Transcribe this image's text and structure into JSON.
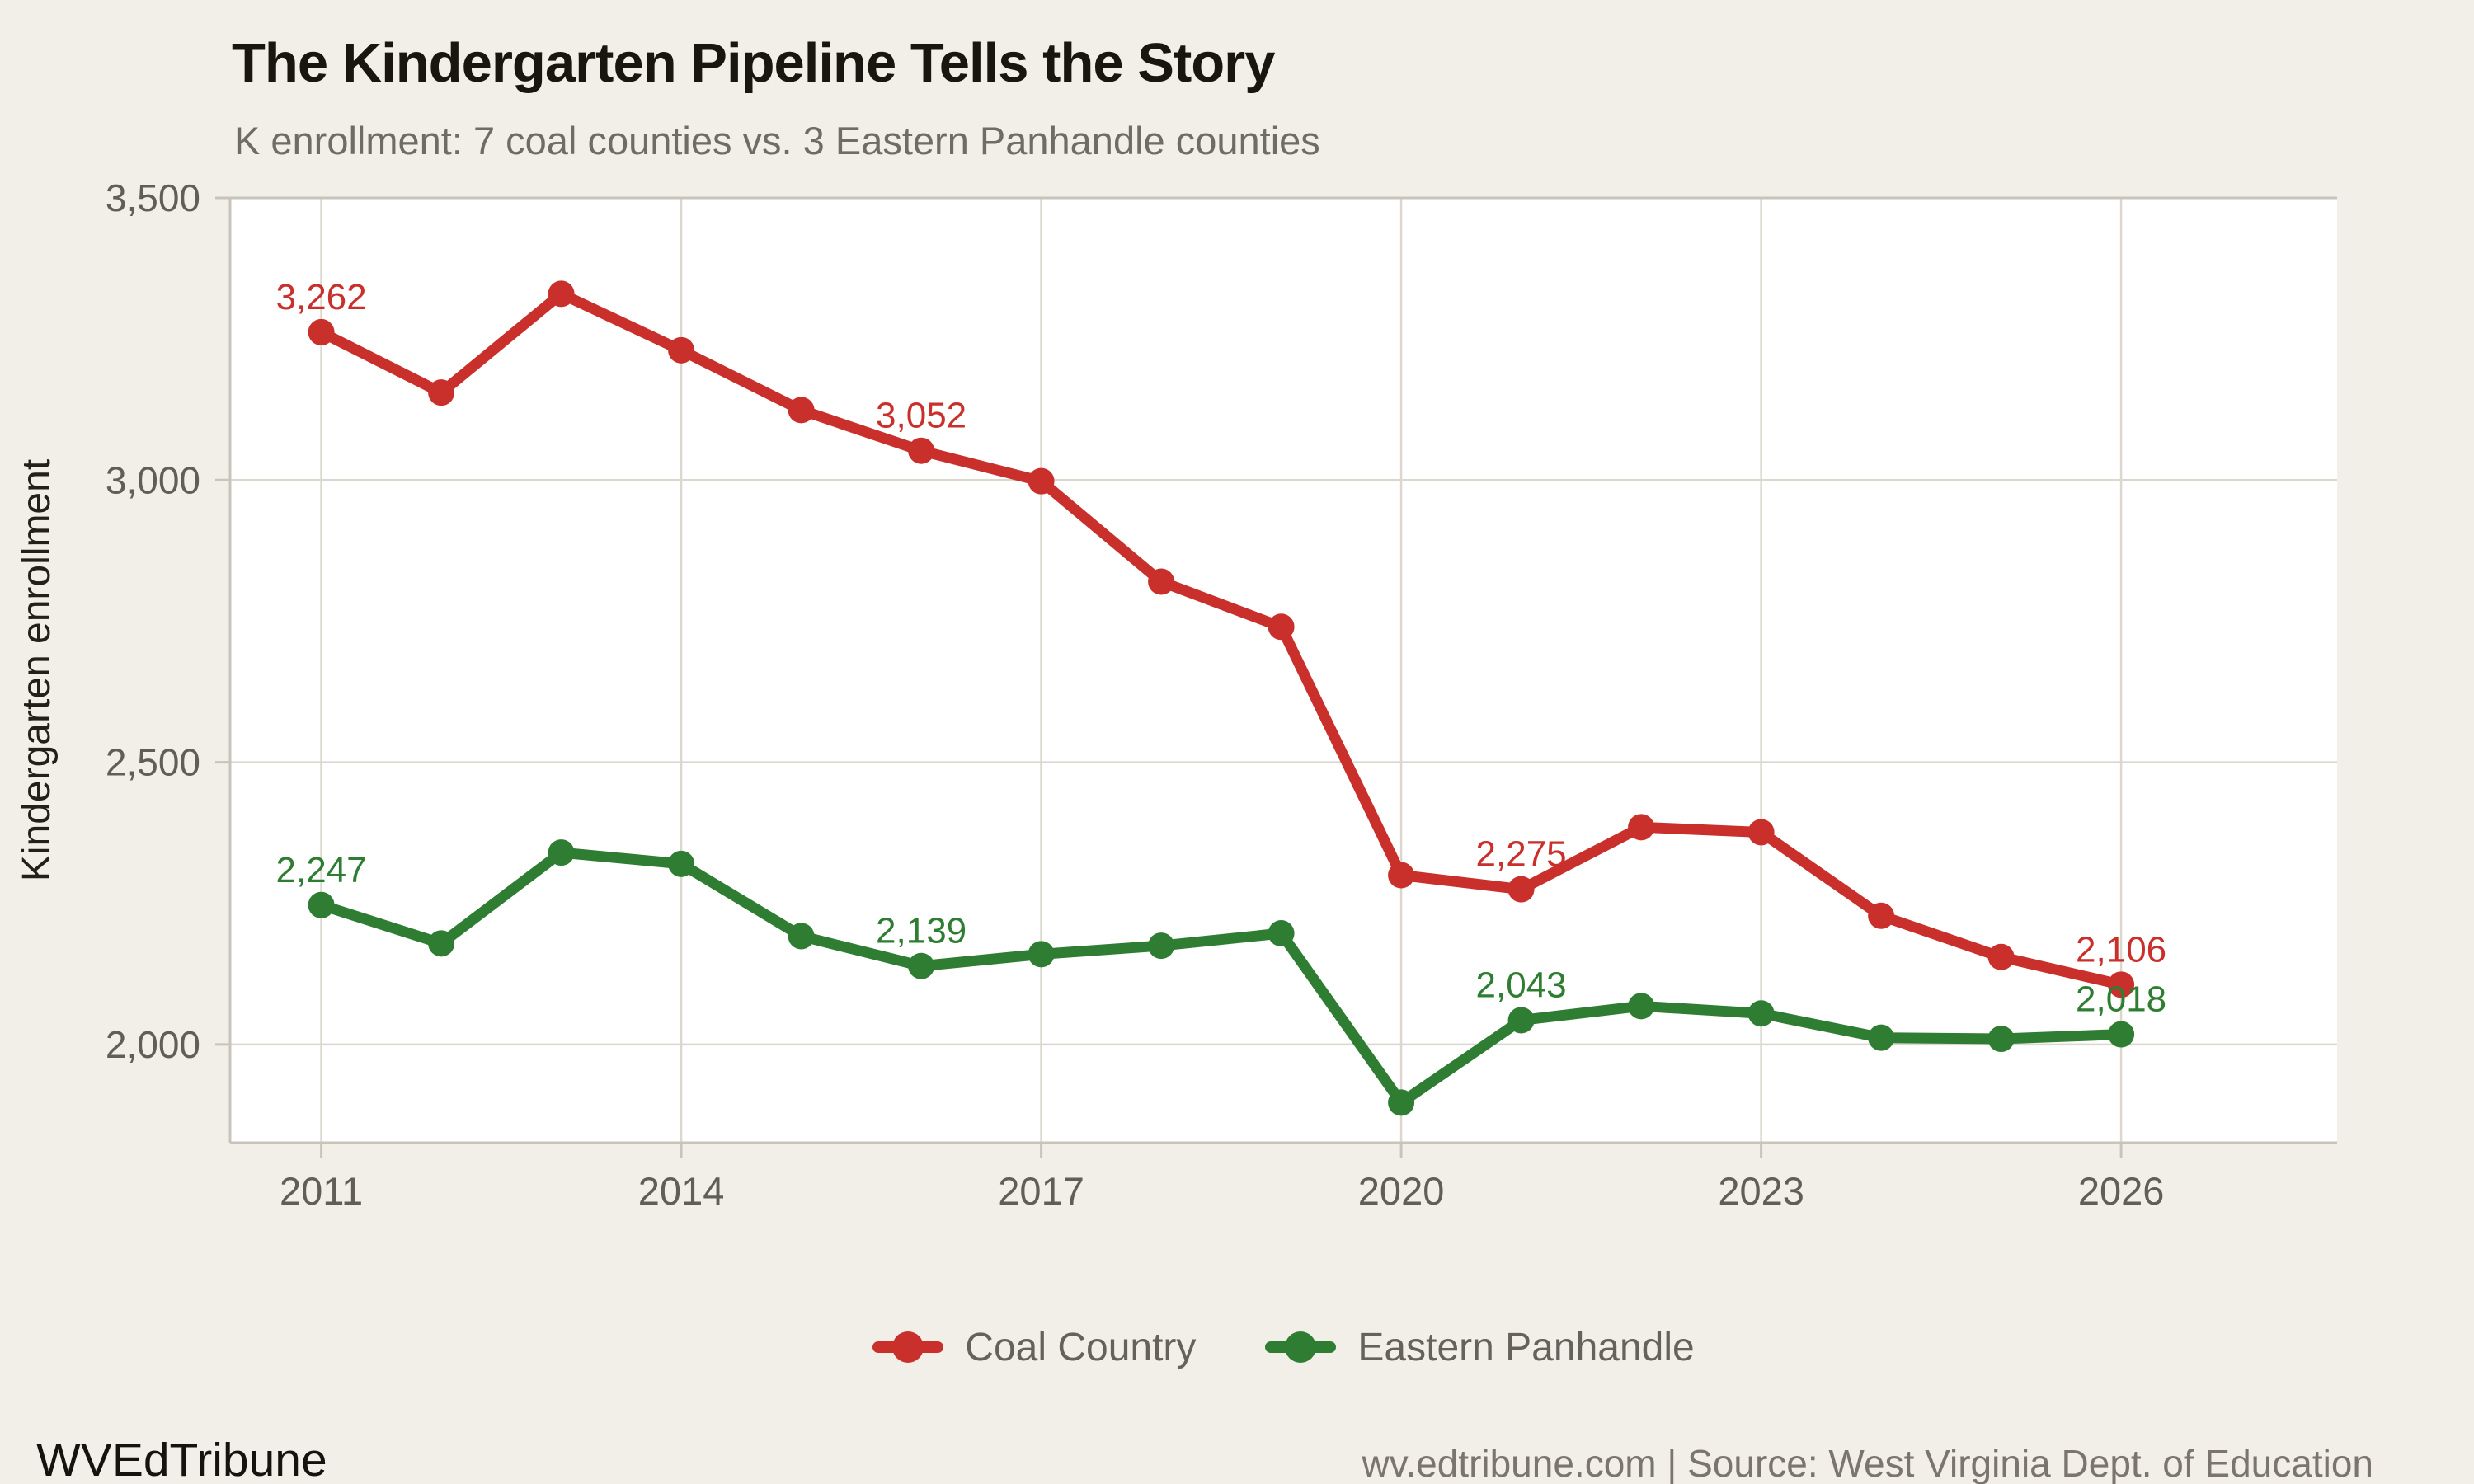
{
  "header": {
    "title": "The Kindergarten Pipeline Tells the Story",
    "subtitle": "K enrollment: 7 coal counties vs. 3 Eastern Panhandle counties"
  },
  "chart_data": {
    "type": "line",
    "title": "The Kindergarten Pipeline Tells the Story",
    "subtitle": "K enrollment: 7 coal counties vs. 3 Eastern Panhandle counties",
    "xlabel": "",
    "ylabel": "Kindergarten enrollment",
    "x": [
      2011,
      2012,
      2013,
      2014,
      2015,
      2016,
      2017,
      2018,
      2019,
      2020,
      2021,
      2022,
      2023,
      2024,
      2025,
      2026
    ],
    "x_ticks": [
      2011,
      2014,
      2017,
      2020,
      2023,
      2026
    ],
    "x_tick_labels": [
      "2011",
      "2014",
      "2017",
      "2020",
      "2023",
      "2026"
    ],
    "y_ticks": [
      2000,
      2500,
      3000,
      3500
    ],
    "y_tick_labels": [
      "2,000",
      "2,500",
      "3,000",
      "3,500"
    ],
    "x_range": [
      2010.24,
      2027.8
    ],
    "ylim": [
      1826,
      3500
    ],
    "grid": true,
    "legend_position": "bottom-center",
    "plot_bg": "#ffffff",
    "page_bg": "#f2efe8",
    "gridline_color": "#dbd7ce",
    "axis_border_color": "#c8c4bb",
    "tick_text_color": "#615e56",
    "axis_label_color": "#222019",
    "series": [
      {
        "name": "Coal Country",
        "color": "#c9302c",
        "values": [
          3262,
          3155,
          3330,
          3230,
          3124,
          3052,
          2998,
          2820,
          2740,
          2300,
          2275,
          2385,
          2376,
          2228,
          2155,
          2106
        ],
        "point_labels": [
          {
            "year": 2011,
            "text": "3,262"
          },
          {
            "year": 2016,
            "text": "3,052"
          },
          {
            "year": 2021,
            "text": "2,275"
          },
          {
            "year": 2026,
            "text": "2,106"
          }
        ]
      },
      {
        "name": "Eastern Panhandle",
        "color": "#2e7d32",
        "values": [
          2247,
          2179,
          2340,
          2320,
          2192,
          2139,
          2160,
          2175,
          2197,
          1897,
          2043,
          2068,
          2055,
          2012,
          2010,
          2018
        ],
        "point_labels": [
          {
            "year": 2011,
            "text": "2,247"
          },
          {
            "year": 2016,
            "text": "2,139"
          },
          {
            "year": 2021,
            "text": "2,043"
          },
          {
            "year": 2026,
            "text": "2,018"
          }
        ]
      }
    ]
  },
  "legend": {
    "items": [
      {
        "label": "Coal Country"
      },
      {
        "label": "Eastern Panhandle"
      }
    ]
  },
  "footer": {
    "brand": "WVEdTribune",
    "source": "wv.edtribune.com | Source: West Virginia Dept. of Education"
  }
}
